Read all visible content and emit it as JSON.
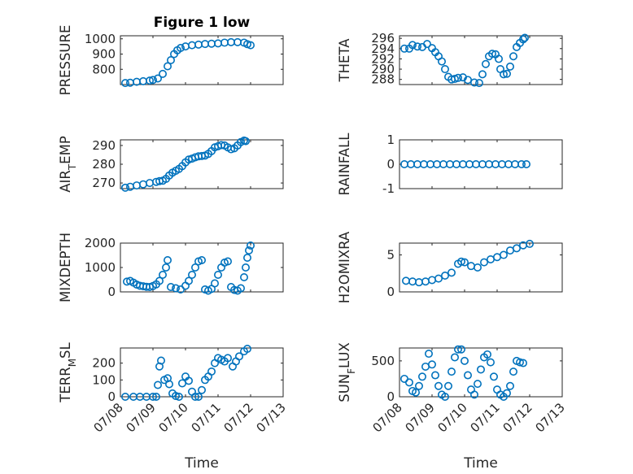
{
  "chart_data": [
    {
      "type": "scatter",
      "title": "Figure 1 low",
      "ylabel": "PRESSURE",
      "ylim": [
        700,
        1020
      ],
      "yticks": [
        800,
        900,
        1000
      ],
      "xlim": [
        0,
        5
      ],
      "xticks": [
        "07/08",
        "07/09",
        "07/10",
        "07/11",
        "07/12",
        "07/13"
      ],
      "show_xticklabels": false,
      "xlabel": "",
      "points": [
        [
          0.15,
          710
        ],
        [
          0.3,
          712
        ],
        [
          0.5,
          718
        ],
        [
          0.7,
          722
        ],
        [
          0.9,
          726
        ],
        [
          1.0,
          730
        ],
        [
          1.15,
          740
        ],
        [
          1.3,
          770
        ],
        [
          1.45,
          820
        ],
        [
          1.55,
          860
        ],
        [
          1.65,
          900
        ],
        [
          1.75,
          925
        ],
        [
          1.85,
          940
        ],
        [
          2.0,
          950
        ],
        [
          2.2,
          958
        ],
        [
          2.4,
          962
        ],
        [
          2.6,
          966
        ],
        [
          2.8,
          968
        ],
        [
          3.0,
          970
        ],
        [
          3.2,
          975
        ],
        [
          3.4,
          978
        ],
        [
          3.6,
          978
        ],
        [
          3.8,
          975
        ],
        [
          3.9,
          965
        ],
        [
          4.0,
          958
        ]
      ]
    },
    {
      "type": "scatter",
      "title": "",
      "ylabel": "THETA",
      "ylim": [
        287,
        296.5
      ],
      "yticks": [
        288,
        290,
        292,
        294,
        296
      ],
      "xlim": [
        0,
        5
      ],
      "xticks": [
        "07/08",
        "07/09",
        "07/10",
        "07/11",
        "07/12",
        "07/13"
      ],
      "show_xticklabels": false,
      "xlabel": "",
      "points": [
        [
          0.15,
          294
        ],
        [
          0.3,
          294
        ],
        [
          0.4,
          294.7
        ],
        [
          0.55,
          294.4
        ],
        [
          0.7,
          294.3
        ],
        [
          0.85,
          294.9
        ],
        [
          1.0,
          294.1
        ],
        [
          1.1,
          293.3
        ],
        [
          1.2,
          292.5
        ],
        [
          1.3,
          291.5
        ],
        [
          1.4,
          290
        ],
        [
          1.5,
          288.5
        ],
        [
          1.6,
          288
        ],
        [
          1.7,
          288.1
        ],
        [
          1.8,
          288.3
        ],
        [
          1.95,
          288.4
        ],
        [
          2.1,
          287.9
        ],
        [
          2.3,
          287.4
        ],
        [
          2.45,
          287.3
        ],
        [
          2.55,
          289
        ],
        [
          2.65,
          291
        ],
        [
          2.75,
          292.5
        ],
        [
          2.85,
          293
        ],
        [
          2.95,
          292.9
        ],
        [
          3.05,
          292
        ],
        [
          3.1,
          290
        ],
        [
          3.2,
          289
        ],
        [
          3.3,
          289.1
        ],
        [
          3.4,
          290.5
        ],
        [
          3.5,
          292.5
        ],
        [
          3.6,
          294.3
        ],
        [
          3.7,
          295.1
        ],
        [
          3.8,
          295.8
        ],
        [
          3.85,
          296.1
        ]
      ]
    },
    {
      "type": "scatter",
      "title": "",
      "ylabel": "AIR_TEMP",
      "ylim": [
        267,
        293
      ],
      "yticks": [
        270,
        280,
        290
      ],
      "xlim": [
        0,
        5
      ],
      "xticks": [
        "07/08",
        "07/09",
        "07/10",
        "07/11",
        "07/12",
        "07/13"
      ],
      "show_xticklabels": false,
      "xlabel": "",
      "points": [
        [
          0.15,
          267.5
        ],
        [
          0.3,
          268
        ],
        [
          0.5,
          268.7
        ],
        [
          0.7,
          269.3
        ],
        [
          0.9,
          270
        ],
        [
          1.1,
          270.6
        ],
        [
          1.2,
          271
        ],
        [
          1.3,
          271.2
        ],
        [
          1.4,
          272.2
        ],
        [
          1.5,
          274
        ],
        [
          1.6,
          275.5
        ],
        [
          1.7,
          276.5
        ],
        [
          1.8,
          277.5
        ],
        [
          1.9,
          279
        ],
        [
          2.0,
          281
        ],
        [
          2.1,
          282.5
        ],
        [
          2.2,
          283
        ],
        [
          2.3,
          283.7
        ],
        [
          2.4,
          284.2
        ],
        [
          2.5,
          284.4
        ],
        [
          2.6,
          284.6
        ],
        [
          2.7,
          285.5
        ],
        [
          2.8,
          287
        ],
        [
          2.9,
          289
        ],
        [
          3.0,
          289.6
        ],
        [
          3.1,
          290.2
        ],
        [
          3.2,
          290
        ],
        [
          3.3,
          289
        ],
        [
          3.4,
          288
        ],
        [
          3.5,
          288.5
        ],
        [
          3.6,
          290
        ],
        [
          3.7,
          291.8
        ],
        [
          3.8,
          292.6
        ],
        [
          3.85,
          292.3
        ]
      ]
    },
    {
      "type": "scatter",
      "title": "",
      "ylabel": "RAINFALL",
      "ylim": [
        -1,
        1
      ],
      "yticks": [
        -1,
        0,
        1
      ],
      "xlim": [
        0,
        5
      ],
      "xticks": [
        "07/08",
        "07/09",
        "07/10",
        "07/11",
        "07/12",
        "07/13"
      ],
      "show_xticklabels": false,
      "xlabel": "",
      "points": [
        [
          0.15,
          0
        ],
        [
          0.35,
          0
        ],
        [
          0.55,
          0
        ],
        [
          0.75,
          0
        ],
        [
          0.95,
          0
        ],
        [
          1.15,
          0
        ],
        [
          1.35,
          0
        ],
        [
          1.55,
          0
        ],
        [
          1.75,
          0
        ],
        [
          1.95,
          0
        ],
        [
          2.15,
          0
        ],
        [
          2.35,
          0
        ],
        [
          2.55,
          0
        ],
        [
          2.75,
          0
        ],
        [
          2.95,
          0
        ],
        [
          3.15,
          0
        ],
        [
          3.35,
          0
        ],
        [
          3.55,
          0
        ],
        [
          3.75,
          0
        ],
        [
          3.9,
          0
        ]
      ]
    },
    {
      "type": "scatter",
      "title": "",
      "ylabel": "MIXDEPTH",
      "ylim": [
        0,
        2000
      ],
      "yticks": [
        0,
        1000,
        2000
      ],
      "xlim": [
        0,
        5
      ],
      "xticks": [
        "07/08",
        "07/09",
        "07/10",
        "07/11",
        "07/12",
        "07/13"
      ],
      "show_xticklabels": false,
      "xlabel": "",
      "points": [
        [
          0.2,
          420
        ],
        [
          0.3,
          450
        ],
        [
          0.4,
          380
        ],
        [
          0.5,
          300
        ],
        [
          0.6,
          250
        ],
        [
          0.7,
          230
        ],
        [
          0.8,
          210
        ],
        [
          0.9,
          200
        ],
        [
          1.0,
          240
        ],
        [
          1.1,
          310
        ],
        [
          1.2,
          450
        ],
        [
          1.3,
          700
        ],
        [
          1.4,
          1000
        ],
        [
          1.45,
          1300
        ],
        [
          1.55,
          200
        ],
        [
          1.7,
          150
        ],
        [
          1.85,
          100
        ],
        [
          2.0,
          250
        ],
        [
          2.1,
          450
        ],
        [
          2.2,
          700
        ],
        [
          2.3,
          1000
        ],
        [
          2.4,
          1250
        ],
        [
          2.5,
          1300
        ],
        [
          2.6,
          100
        ],
        [
          2.7,
          50
        ],
        [
          2.8,
          120
        ],
        [
          2.9,
          350
        ],
        [
          3.0,
          700
        ],
        [
          3.1,
          1000
        ],
        [
          3.2,
          1200
        ],
        [
          3.3,
          1250
        ],
        [
          3.4,
          200
        ],
        [
          3.5,
          80
        ],
        [
          3.6,
          50
        ],
        [
          3.7,
          150
        ],
        [
          3.8,
          600
        ],
        [
          3.85,
          1000
        ],
        [
          3.9,
          1400
        ],
        [
          3.95,
          1700
        ],
        [
          4.0,
          1900
        ]
      ]
    },
    {
      "type": "scatter",
      "title": "",
      "ylabel": "H2OMIXRA",
      "ylim": [
        0,
        6.6
      ],
      "yticks": [
        0,
        5
      ],
      "xlim": [
        0,
        5
      ],
      "xticks": [
        "07/08",
        "07/09",
        "07/10",
        "07/11",
        "07/12",
        "07/13"
      ],
      "show_xticklabels": false,
      "xlabel": "",
      "points": [
        [
          0.2,
          1.5
        ],
        [
          0.4,
          1.4
        ],
        [
          0.6,
          1.3
        ],
        [
          0.8,
          1.4
        ],
        [
          1.0,
          1.6
        ],
        [
          1.2,
          1.8
        ],
        [
          1.4,
          2.2
        ],
        [
          1.6,
          2.6
        ],
        [
          1.8,
          3.8
        ],
        [
          1.9,
          4.1
        ],
        [
          2.0,
          4.0
        ],
        [
          2.2,
          3.5
        ],
        [
          2.4,
          3.3
        ],
        [
          2.6,
          4.0
        ],
        [
          2.8,
          4.4
        ],
        [
          3.0,
          4.7
        ],
        [
          3.2,
          5.0
        ],
        [
          3.4,
          5.6
        ],
        [
          3.6,
          5.9
        ],
        [
          3.8,
          6.3
        ],
        [
          4.0,
          6.5
        ]
      ]
    },
    {
      "type": "scatter",
      "title": "",
      "ylabel": "TERR_MSL",
      "ylim": [
        0,
        290
      ],
      "yticks": [
        0,
        100,
        200
      ],
      "xlim": [
        0,
        5
      ],
      "xticks": [
        "07/08",
        "07/09",
        "07/10",
        "07/11",
        "07/12",
        "07/13"
      ],
      "show_xticklabels": true,
      "xlabel": "Time",
      "points": [
        [
          0.15,
          0
        ],
        [
          0.4,
          0
        ],
        [
          0.6,
          0
        ],
        [
          0.8,
          0
        ],
        [
          1.0,
          0
        ],
        [
          1.1,
          0
        ],
        [
          1.15,
          70
        ],
        [
          1.2,
          180
        ],
        [
          1.25,
          215
        ],
        [
          1.35,
          100
        ],
        [
          1.45,
          110
        ],
        [
          1.5,
          75
        ],
        [
          1.6,
          20
        ],
        [
          1.7,
          5
        ],
        [
          1.8,
          0
        ],
        [
          1.9,
          80
        ],
        [
          2.0,
          120
        ],
        [
          2.1,
          95
        ],
        [
          2.2,
          30
        ],
        [
          2.3,
          0
        ],
        [
          2.4,
          0
        ],
        [
          2.5,
          40
        ],
        [
          2.6,
          100
        ],
        [
          2.7,
          120
        ],
        [
          2.8,
          150
        ],
        [
          2.9,
          200
        ],
        [
          3.0,
          230
        ],
        [
          3.1,
          220
        ],
        [
          3.2,
          210
        ],
        [
          3.3,
          230
        ],
        [
          3.45,
          180
        ],
        [
          3.55,
          210
        ],
        [
          3.65,
          240
        ],
        [
          3.8,
          270
        ],
        [
          3.9,
          285
        ]
      ]
    },
    {
      "type": "scatter",
      "title": "",
      "ylabel": "SUN_FLUX",
      "ylim": [
        0,
        680
      ],
      "yticks": [
        0,
        500
      ],
      "xlim": [
        0,
        5
      ],
      "xticks": [
        "07/08",
        "07/09",
        "07/10",
        "07/11",
        "07/12",
        "07/13"
      ],
      "show_xticklabels": true,
      "xlabel": "Time",
      "points": [
        [
          0.15,
          250
        ],
        [
          0.3,
          200
        ],
        [
          0.4,
          80
        ],
        [
          0.5,
          60
        ],
        [
          0.6,
          150
        ],
        [
          0.7,
          280
        ],
        [
          0.8,
          420
        ],
        [
          0.9,
          600
        ],
        [
          1.0,
          450
        ],
        [
          1.1,
          300
        ],
        [
          1.2,
          150
        ],
        [
          1.3,
          30
        ],
        [
          1.4,
          0
        ],
        [
          1.5,
          150
        ],
        [
          1.6,
          350
        ],
        [
          1.7,
          550
        ],
        [
          1.8,
          660
        ],
        [
          1.9,
          660
        ],
        [
          2.0,
          500
        ],
        [
          2.1,
          300
        ],
        [
          2.2,
          100
        ],
        [
          2.3,
          30
        ],
        [
          2.4,
          180
        ],
        [
          2.5,
          380
        ],
        [
          2.6,
          550
        ],
        [
          2.7,
          590
        ],
        [
          2.8,
          480
        ],
        [
          2.9,
          280
        ],
        [
          3.0,
          100
        ],
        [
          3.1,
          30
        ],
        [
          3.2,
          0
        ],
        [
          3.3,
          50
        ],
        [
          3.4,
          150
        ],
        [
          3.5,
          350
        ],
        [
          3.6,
          500
        ],
        [
          3.7,
          480
        ],
        [
          3.8,
          470
        ]
      ]
    }
  ]
}
